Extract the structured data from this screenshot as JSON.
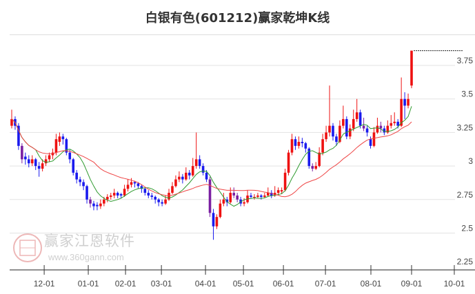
{
  "title": "白银有色(601212)赢家乾坤K线",
  "watermark": {
    "brand": "赢家江恩软件",
    "url": "www.360gann.com"
  },
  "colors": {
    "up": "#ee1111",
    "down": "#1a1aee",
    "special": "#7a1fa2",
    "ma_short": "#2e9a2e",
    "ma_long": "#ee4444",
    "grid": "#e3e3e3"
  },
  "chart_data": {
    "type": "candlestick",
    "title": "白银有色(601212)赢家乾坤K线",
    "ylim": [
      2.25,
      3.9
    ],
    "yticks": [
      2.25,
      2.5,
      2.75,
      3,
      3.25,
      3.5,
      3.75
    ],
    "ytick_labels": [
      "2.25",
      "2.5",
      "2.75",
      "3",
      "3.25",
      "3.5",
      "3.75"
    ],
    "xlim_index": [
      0,
      133
    ],
    "xticks": [
      {
        "label": "12-01",
        "index": 9.5
      },
      {
        "label": "01-01",
        "index": 22.4
      },
      {
        "label": "02-01",
        "index": 33.3
      },
      {
        "label": "03-01",
        "index": 43.8
      },
      {
        "label": "04-01",
        "index": 56.7
      },
      {
        "label": "05-01",
        "index": 67.8
      },
      {
        "label": "06-01",
        "index": 79.5
      },
      {
        "label": "07-01",
        "index": 91.8
      },
      {
        "label": "08-01",
        "index": 105.1
      },
      {
        "label": "09-01",
        "index": 117
      },
      {
        "label": "10-01",
        "index": 129.5
      }
    ],
    "grid": true,
    "ma_periods": [
      8,
      25
    ],
    "last_high_line": 3.86,
    "special_indices": [
      3,
      23,
      58,
      65,
      66,
      88,
      103,
      108
    ],
    "ohlc": [
      [
        3.3,
        3.42,
        3.28,
        3.35
      ],
      [
        3.35,
        3.37,
        3.27,
        3.3
      ],
      [
        3.3,
        3.32,
        3.12,
        3.15
      ],
      [
        3.15,
        3.17,
        3.02,
        3.05
      ],
      [
        3.07,
        3.1,
        3.01,
        3.05
      ],
      [
        3.05,
        3.08,
        2.99,
        3.02
      ],
      [
        3.02,
        3.08,
        3.0,
        3.05
      ],
      [
        3.05,
        3.06,
        2.97,
        3.0
      ],
      [
        3.0,
        3.03,
        2.92,
        2.98
      ],
      [
        2.98,
        3.05,
        2.96,
        3.02
      ],
      [
        3.02,
        3.08,
        3.0,
        3.05
      ],
      [
        3.05,
        3.1,
        3.03,
        3.08
      ],
      [
        3.08,
        3.13,
        3.05,
        3.1
      ],
      [
        3.1,
        3.24,
        3.08,
        3.2
      ],
      [
        3.18,
        3.25,
        3.15,
        3.22
      ],
      [
        3.22,
        3.24,
        3.16,
        3.2
      ],
      [
        3.2,
        3.21,
        3.08,
        3.1
      ],
      [
        3.1,
        3.12,
        3.02,
        3.05
      ],
      [
        3.05,
        3.06,
        2.93,
        2.95
      ],
      [
        2.95,
        2.97,
        2.87,
        2.9
      ],
      [
        2.9,
        2.92,
        2.85,
        2.88
      ],
      [
        2.88,
        2.9,
        2.82,
        2.85
      ],
      [
        2.85,
        2.86,
        2.72,
        2.75
      ],
      [
        2.75,
        2.77,
        2.69,
        2.72
      ],
      [
        2.72,
        2.74,
        2.67,
        2.7
      ],
      [
        2.71,
        2.73,
        2.67,
        2.7
      ],
      [
        2.7,
        2.75,
        2.68,
        2.72
      ],
      [
        2.72,
        2.77,
        2.7,
        2.75
      ],
      [
        2.75,
        2.79,
        2.73,
        2.77
      ],
      [
        2.77,
        2.8,
        2.75,
        2.78
      ],
      [
        2.78,
        2.83,
        2.76,
        2.8
      ],
      [
        2.8,
        2.81,
        2.76,
        2.78
      ],
      [
        2.79,
        2.8,
        2.76,
        2.78
      ],
      [
        2.78,
        2.86,
        2.77,
        2.83
      ],
      [
        2.83,
        2.9,
        2.81,
        2.86
      ],
      [
        2.86,
        2.91,
        2.84,
        2.88
      ],
      [
        2.88,
        2.89,
        2.84,
        2.87
      ],
      [
        2.87,
        2.88,
        2.83,
        2.85
      ],
      [
        2.85,
        2.86,
        2.8,
        2.83
      ],
      [
        2.83,
        2.84,
        2.78,
        2.8
      ],
      [
        2.8,
        2.82,
        2.76,
        2.78
      ],
      [
        2.78,
        2.8,
        2.75,
        2.77
      ],
      [
        2.77,
        2.78,
        2.72,
        2.75
      ],
      [
        2.75,
        2.76,
        2.7,
        2.73
      ],
      [
        2.73,
        2.75,
        2.7,
        2.72
      ],
      [
        2.72,
        2.78,
        2.71,
        2.75
      ],
      [
        2.75,
        2.83,
        2.74,
        2.8
      ],
      [
        2.8,
        2.88,
        2.79,
        2.85
      ],
      [
        2.85,
        2.93,
        2.84,
        2.9
      ],
      [
        2.9,
        2.96,
        2.88,
        2.92
      ],
      [
        2.92,
        2.94,
        2.87,
        2.9
      ],
      [
        2.9,
        2.99,
        2.89,
        2.95
      ],
      [
        2.95,
        2.97,
        2.9,
        2.93
      ],
      [
        2.93,
        3.06,
        2.92,
        3.0
      ],
      [
        3.0,
        3.25,
        2.98,
        3.05
      ],
      [
        3.05,
        3.08,
        2.98,
        3.0
      ],
      [
        3.0,
        3.02,
        2.93,
        2.95
      ],
      [
        2.95,
        2.97,
        2.88,
        2.9
      ],
      [
        2.9,
        2.92,
        2.62,
        2.65
      ],
      [
        2.65,
        2.68,
        2.45,
        2.55
      ],
      [
        2.55,
        2.64,
        2.53,
        2.62
      ],
      [
        2.62,
        2.75,
        2.61,
        2.72
      ],
      [
        2.72,
        2.8,
        2.7,
        2.75
      ],
      [
        2.75,
        2.77,
        2.7,
        2.73
      ],
      [
        2.73,
        2.84,
        2.72,
        2.8
      ],
      [
        2.8,
        2.84,
        2.76,
        2.78
      ],
      [
        2.78,
        2.8,
        2.73,
        2.75
      ],
      [
        2.75,
        2.77,
        2.7,
        2.72
      ],
      [
        2.72,
        2.76,
        2.7,
        2.73
      ],
      [
        2.73,
        2.82,
        2.72,
        2.78
      ],
      [
        2.78,
        2.8,
        2.76,
        2.77
      ],
      [
        2.77,
        2.79,
        2.75,
        2.77
      ],
      [
        2.77,
        2.8,
        2.76,
        2.78
      ],
      [
        2.78,
        2.79,
        2.75,
        2.77
      ],
      [
        2.77,
        2.8,
        2.76,
        2.78
      ],
      [
        2.78,
        2.84,
        2.77,
        2.8
      ],
      [
        2.8,
        2.82,
        2.76,
        2.78
      ],
      [
        2.78,
        2.85,
        2.77,
        2.8
      ],
      [
        2.8,
        2.84,
        2.78,
        2.82
      ],
      [
        2.81,
        2.84,
        2.79,
        2.82
      ],
      [
        2.82,
        2.98,
        2.81,
        2.95
      ],
      [
        2.95,
        3.12,
        2.93,
        3.1
      ],
      [
        3.1,
        3.24,
        3.08,
        3.2
      ],
      [
        3.2,
        3.22,
        3.12,
        3.15
      ],
      [
        3.15,
        3.22,
        3.13,
        3.18
      ],
      [
        3.18,
        3.21,
        3.14,
        3.17
      ],
      [
        3.17,
        3.18,
        3.1,
        3.13
      ],
      [
        3.13,
        3.14,
        2.98,
        3.0
      ],
      [
        3.0,
        3.02,
        2.96,
        2.98
      ],
      [
        2.98,
        3.03,
        2.97,
        3.0
      ],
      [
        3.0,
        3.14,
        2.99,
        3.1
      ],
      [
        3.1,
        3.24,
        3.08,
        3.2
      ],
      [
        3.2,
        3.3,
        3.18,
        3.25
      ],
      [
        3.25,
        3.6,
        3.22,
        3.3
      ],
      [
        3.3,
        3.32,
        3.19,
        3.22
      ],
      [
        3.22,
        3.24,
        3.15,
        3.18
      ],
      [
        3.18,
        3.34,
        3.17,
        3.3
      ],
      [
        3.3,
        3.45,
        3.28,
        3.35
      ],
      [
        3.35,
        3.37,
        3.2,
        3.22
      ],
      [
        3.22,
        3.31,
        3.2,
        3.28
      ],
      [
        3.28,
        3.42,
        3.26,
        3.35
      ],
      [
        3.35,
        3.5,
        3.33,
        3.4
      ],
      [
        3.4,
        3.42,
        3.28,
        3.3
      ],
      [
        3.3,
        3.36,
        3.26,
        3.28
      ],
      [
        3.28,
        3.3,
        3.22,
        3.25
      ],
      [
        3.2,
        3.22,
        3.13,
        3.15
      ],
      [
        3.15,
        3.29,
        3.14,
        3.25
      ],
      [
        3.25,
        3.36,
        3.24,
        3.3
      ],
      [
        3.3,
        3.33,
        3.25,
        3.28
      ],
      [
        3.28,
        3.3,
        3.23,
        3.25
      ],
      [
        3.25,
        3.34,
        3.24,
        3.3
      ],
      [
        3.3,
        3.38,
        3.28,
        3.32
      ],
      [
        3.32,
        3.4,
        3.3,
        3.33
      ],
      [
        3.33,
        3.35,
        3.28,
        3.3
      ],
      [
        3.3,
        3.66,
        3.29,
        3.5
      ],
      [
        3.5,
        3.55,
        3.35,
        3.45
      ],
      [
        3.45,
        3.54,
        3.43,
        3.5
      ],
      [
        3.6,
        3.86,
        3.58,
        3.86
      ]
    ]
  }
}
